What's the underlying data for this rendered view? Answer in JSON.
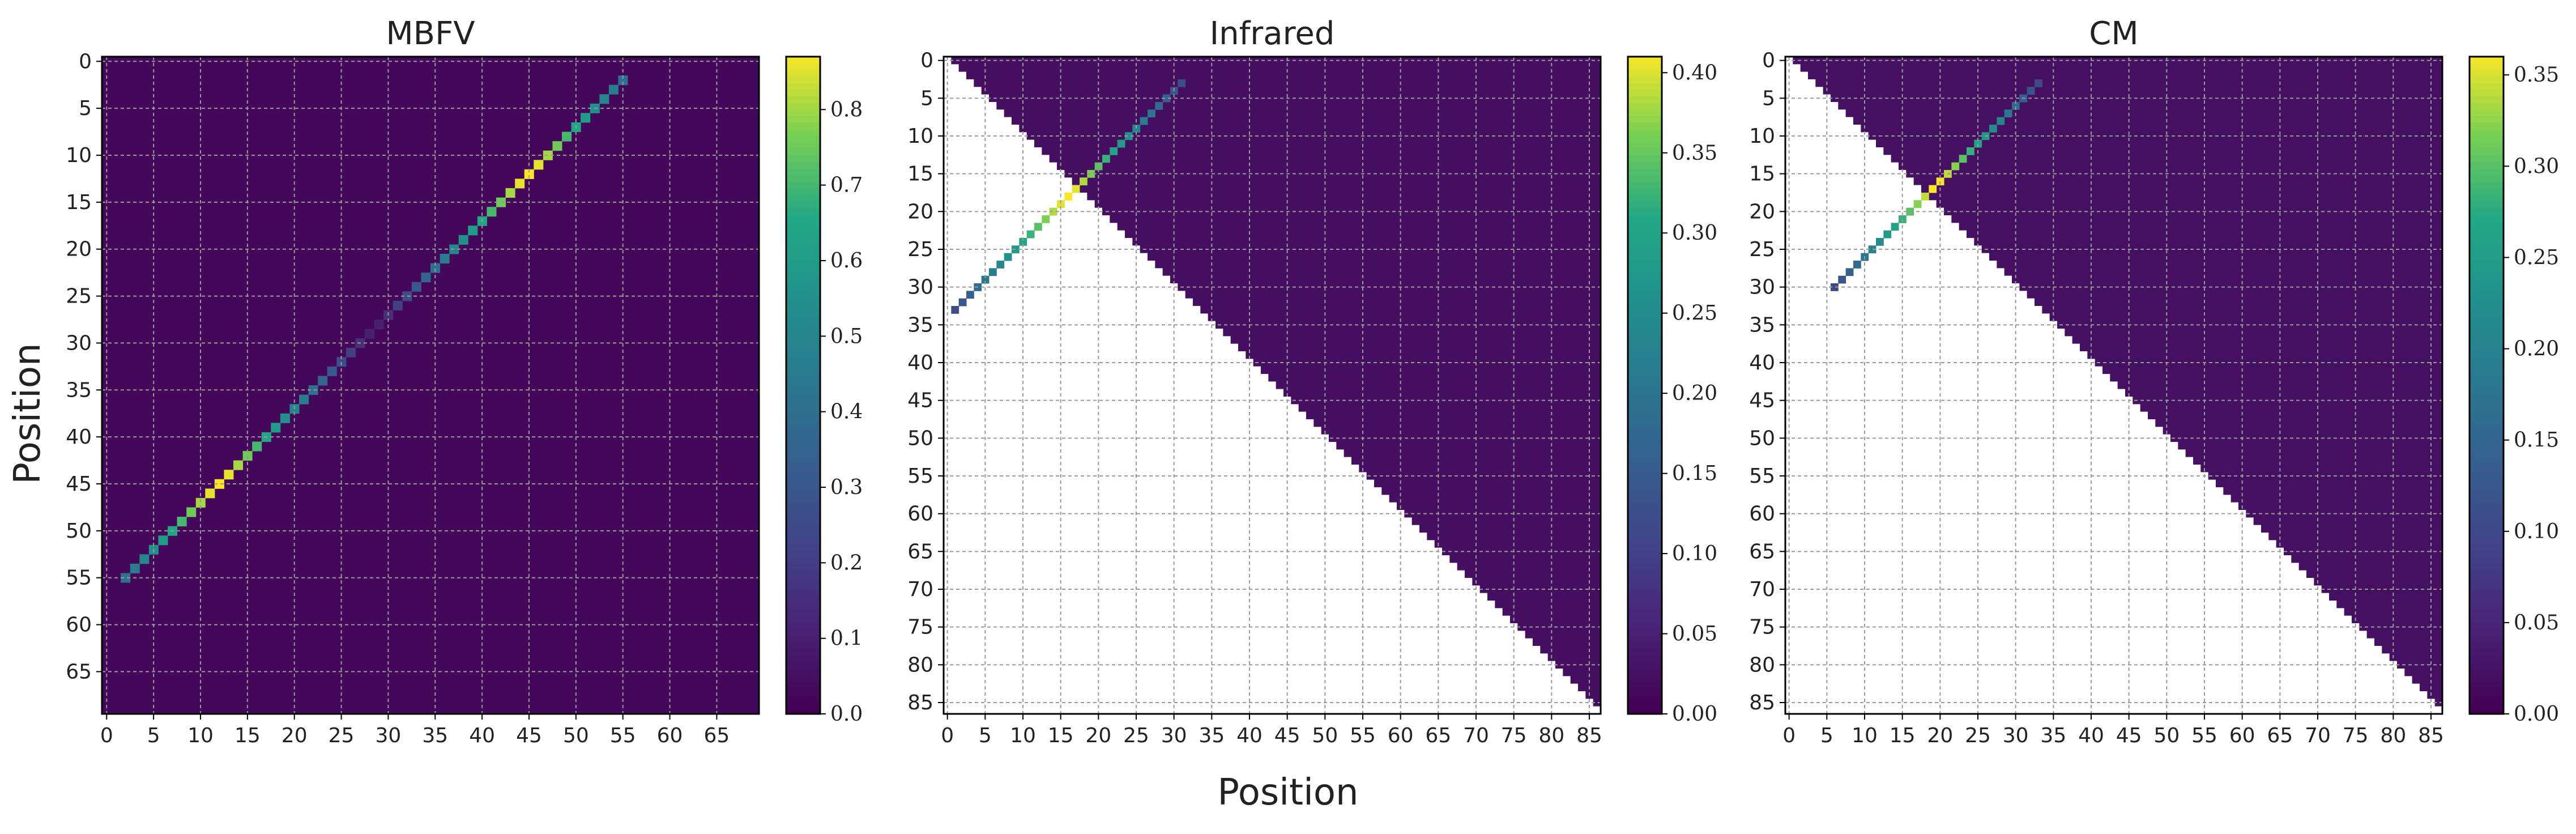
{
  "chart_data": [
    {
      "type": "heatmap",
      "title": "MBFV",
      "n": 70,
      "triangle": "full",
      "xticks": [
        "0",
        "5",
        "10",
        "15",
        "20",
        "25",
        "30",
        "35",
        "40",
        "45",
        "50",
        "55",
        "60",
        "65"
      ],
      "yticks": [
        "0",
        "5",
        "10",
        "15",
        "20",
        "25",
        "30",
        "35",
        "40",
        "45",
        "50",
        "55",
        "60",
        "65"
      ],
      "colorbar_ticks": [
        "0.0",
        "0.1",
        "0.2",
        "0.3",
        "0.4",
        "0.5",
        "0.6",
        "0.7",
        "0.8"
      ],
      "colorbar_range": [
        0,
        0.87
      ],
      "grid": true,
      "colormap": "viridis",
      "cells": [
        [
          55,
          2,
          0.4
        ],
        [
          54,
          3,
          0.45
        ],
        [
          53,
          4,
          0.5
        ],
        [
          52,
          5,
          0.55
        ],
        [
          51,
          6,
          0.6
        ],
        [
          50,
          7,
          0.65
        ],
        [
          49,
          8,
          0.7
        ],
        [
          48,
          9,
          0.75
        ],
        [
          47,
          10,
          0.8
        ],
        [
          46,
          11,
          0.85
        ],
        [
          45,
          12,
          0.87
        ],
        [
          44,
          13,
          0.85
        ],
        [
          43,
          14,
          0.8
        ],
        [
          42,
          15,
          0.75
        ],
        [
          41,
          16,
          0.7
        ],
        [
          40,
          17,
          0.65
        ],
        [
          39,
          18,
          0.6
        ],
        [
          38,
          19,
          0.55
        ],
        [
          37,
          20,
          0.5
        ],
        [
          36,
          21,
          0.45
        ],
        [
          35,
          22,
          0.4
        ],
        [
          34,
          23,
          0.35
        ],
        [
          33,
          24,
          0.3
        ],
        [
          32,
          25,
          0.25
        ],
        [
          31,
          26,
          0.2
        ],
        [
          30,
          27,
          0.15
        ],
        [
          29,
          28,
          0.1
        ],
        [
          28,
          29,
          0.1
        ],
        [
          27,
          30,
          0.15
        ],
        [
          26,
          31,
          0.2
        ],
        [
          25,
          32,
          0.25
        ],
        [
          24,
          33,
          0.3
        ],
        [
          23,
          34,
          0.35
        ],
        [
          22,
          35,
          0.4
        ],
        [
          21,
          36,
          0.45
        ],
        [
          20,
          37,
          0.5
        ],
        [
          19,
          38,
          0.55
        ],
        [
          18,
          39,
          0.6
        ],
        [
          17,
          40,
          0.65
        ],
        [
          16,
          41,
          0.7
        ],
        [
          15,
          42,
          0.75
        ],
        [
          14,
          43,
          0.8
        ],
        [
          13,
          44,
          0.85
        ],
        [
          12,
          45,
          0.87
        ],
        [
          11,
          46,
          0.85
        ],
        [
          10,
          47,
          0.8
        ],
        [
          9,
          48,
          0.75
        ],
        [
          8,
          49,
          0.7
        ],
        [
          7,
          50,
          0.65
        ],
        [
          6,
          51,
          0.6
        ],
        [
          5,
          52,
          0.55
        ],
        [
          4,
          53,
          0.5
        ],
        [
          3,
          54,
          0.45
        ],
        [
          2,
          55,
          0.4
        ]
      ]
    },
    {
      "type": "heatmap",
      "title": "Infrared",
      "n": 87,
      "triangle": "upper",
      "xticks": [
        "0",
        "5",
        "10",
        "15",
        "20",
        "25",
        "30",
        "35",
        "40",
        "45",
        "50",
        "55",
        "60",
        "65",
        "70",
        "75",
        "80",
        "85"
      ],
      "yticks": [
        "0",
        "5",
        "10",
        "15",
        "20",
        "25",
        "30",
        "35",
        "40",
        "45",
        "50",
        "55",
        "60",
        "65",
        "70",
        "75",
        "80",
        "85"
      ],
      "colorbar_ticks": [
        "0.00",
        "0.05",
        "0.10",
        "0.15",
        "0.20",
        "0.25",
        "0.30",
        "0.35",
        "0.40"
      ],
      "colorbar_range": [
        0,
        0.41
      ],
      "grid": true,
      "colormap": "viridis",
      "cells": [
        [
          3,
          31,
          0.12
        ],
        [
          4,
          30,
          0.14
        ],
        [
          5,
          29,
          0.16
        ],
        [
          6,
          28,
          0.18
        ],
        [
          7,
          27,
          0.2
        ],
        [
          8,
          26,
          0.22
        ],
        [
          9,
          25,
          0.24
        ],
        [
          10,
          24,
          0.26
        ],
        [
          11,
          23,
          0.28
        ],
        [
          12,
          22,
          0.3
        ],
        [
          13,
          21,
          0.32
        ],
        [
          14,
          20,
          0.34
        ],
        [
          15,
          19,
          0.36
        ],
        [
          16,
          18,
          0.38
        ],
        [
          17,
          17,
          0.4
        ],
        [
          18,
          16,
          0.41
        ],
        [
          19,
          15,
          0.4
        ],
        [
          20,
          14,
          0.38
        ],
        [
          21,
          13,
          0.36
        ],
        [
          22,
          12,
          0.34
        ],
        [
          23,
          11,
          0.32
        ],
        [
          24,
          10,
          0.3
        ],
        [
          25,
          9,
          0.28
        ],
        [
          26,
          8,
          0.26
        ],
        [
          27,
          7,
          0.24
        ],
        [
          28,
          6,
          0.22
        ],
        [
          29,
          5,
          0.2
        ],
        [
          30,
          4,
          0.18
        ],
        [
          31,
          3,
          0.16
        ],
        [
          32,
          2,
          0.14
        ],
        [
          33,
          1,
          0.12
        ]
      ]
    },
    {
      "type": "heatmap",
      "title": "CM",
      "n": 87,
      "triangle": "upper",
      "xticks": [
        "0",
        "5",
        "10",
        "15",
        "20",
        "25",
        "30",
        "35",
        "40",
        "45",
        "50",
        "55",
        "60",
        "65",
        "70",
        "75",
        "80",
        "85"
      ],
      "yticks": [
        "0",
        "5",
        "10",
        "15",
        "20",
        "25",
        "30",
        "35",
        "40",
        "45",
        "50",
        "55",
        "60",
        "65",
        "70",
        "75",
        "80",
        "85"
      ],
      "colorbar_ticks": [
        "0.00",
        "0.05",
        "0.10",
        "0.15",
        "0.20",
        "0.25",
        "0.30",
        "0.35"
      ],
      "colorbar_range": [
        0,
        0.36
      ],
      "grid": true,
      "colormap": "viridis",
      "cells": [
        [
          3,
          33,
          0.1
        ],
        [
          4,
          32,
          0.12
        ],
        [
          5,
          31,
          0.14
        ],
        [
          6,
          30,
          0.16
        ],
        [
          7,
          29,
          0.18
        ],
        [
          8,
          28,
          0.2
        ],
        [
          9,
          27,
          0.22
        ],
        [
          10,
          26,
          0.24
        ],
        [
          11,
          25,
          0.26
        ],
        [
          12,
          24,
          0.28
        ],
        [
          13,
          23,
          0.3
        ],
        [
          14,
          22,
          0.32
        ],
        [
          15,
          21,
          0.34
        ],
        [
          16,
          20,
          0.36
        ],
        [
          17,
          19,
          0.36
        ],
        [
          18,
          18,
          0.34
        ],
        [
          19,
          17,
          0.32
        ],
        [
          20,
          16,
          0.3
        ],
        [
          21,
          15,
          0.28
        ],
        [
          22,
          14,
          0.26
        ],
        [
          23,
          13,
          0.24
        ],
        [
          24,
          12,
          0.22
        ],
        [
          25,
          11,
          0.2
        ],
        [
          26,
          10,
          0.18
        ],
        [
          27,
          9,
          0.16
        ],
        [
          28,
          8,
          0.14
        ],
        [
          29,
          7,
          0.12
        ],
        [
          30,
          6,
          0.1
        ]
      ]
    }
  ],
  "shared_labels": {
    "xlabel": "Position",
    "ylabel": "Position"
  }
}
